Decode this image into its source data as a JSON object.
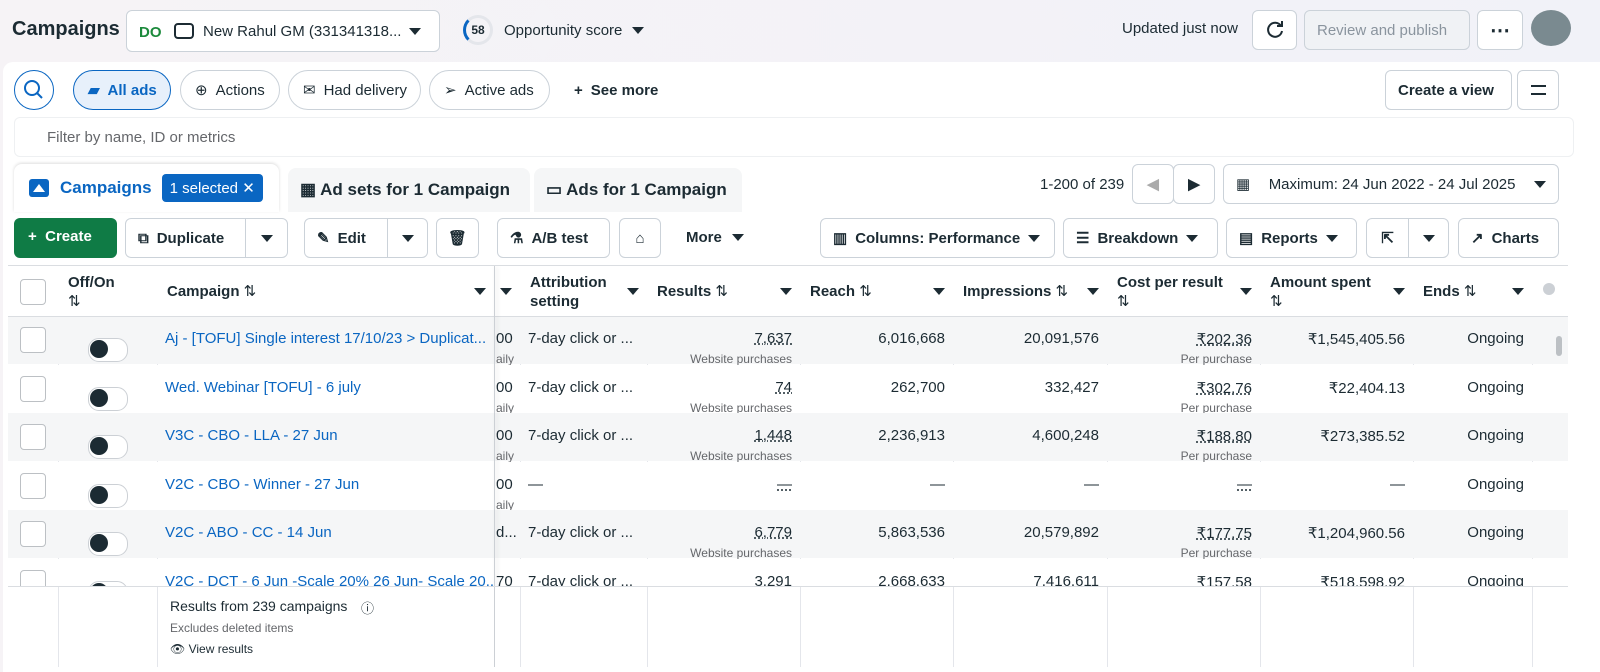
{
  "header": {
    "title": "Campaigns",
    "account": "New Rahul GM (331341318...",
    "opportunity_score": "58",
    "opportunity_label": "Opportunity score",
    "updated": "Updated just now",
    "review": "Review and publish"
  },
  "filters": {
    "items": [
      "All ads",
      "Actions",
      "Had delivery",
      "Active ads",
      "See more"
    ],
    "create_view": "Create a view",
    "search_placeholder": "Filter by name, ID or metrics"
  },
  "tabs": {
    "campaigns": "Campaigns",
    "selected": "1 selected",
    "ad_sets": "Ad sets for 1 Campaign",
    "ads": "Ads for 1 Campaign",
    "pagination": "1-200 of 239",
    "date_range": "Maximum: 24 Jun 2022 - 24 Jul 2025"
  },
  "toolbar": {
    "create": "Create",
    "duplicate": "Duplicate",
    "edit": "Edit",
    "ab_test": "A/B test",
    "more": "More",
    "columns": "Columns: Performance",
    "breakdown": "Breakdown",
    "reports": "Reports",
    "charts": "Charts"
  },
  "table": {
    "columns": [
      "Off/On",
      "Campaign",
      "Attribution setting",
      "Results",
      "Reach",
      "Impressions",
      "Cost per result",
      "Amount spent",
      "Ends"
    ],
    "rows": [
      {
        "campaign": "Aj - [TOFU] Single interest 17/10/23 > Duplicat...",
        "budget": "00",
        "budget_sub": "aily",
        "attribution": "7-day click or ...",
        "results": "7,637",
        "results_sub": "Website purchases",
        "reach": "6,016,668",
        "impressions": "20,091,576",
        "cost": "₹202.36",
        "cost_sub": "Per purchase",
        "amount": "₹1,545,405.56",
        "ends": "Ongoing"
      },
      {
        "campaign": "Wed. Webinar [TOFU] - 6 july",
        "budget": "00",
        "budget_sub": "aily",
        "attribution": "7-day click or ...",
        "results": "74",
        "results_sub": "Website purchases",
        "reach": "262,700",
        "impressions": "332,427",
        "cost": "₹302.76",
        "cost_sub": "Per purchase",
        "amount": "₹22,404.13",
        "ends": "Ongoing"
      },
      {
        "campaign": "V3C - CBO - LLA - 27 Jun",
        "budget": "00",
        "budget_sub": "aily",
        "attribution": "7-day click or ...",
        "results": "1,448",
        "results_sub": "Website purchases",
        "reach": "2,236,913",
        "impressions": "4,600,248",
        "cost": "₹188.80",
        "cost_sub": "Per purchase",
        "amount": "₹273,385.52",
        "ends": "Ongoing"
      },
      {
        "campaign": "V2C - CBO - Winner - 27 Jun",
        "budget": "00",
        "budget_sub": "aily",
        "attribution": "—",
        "results": "—",
        "reach": "—",
        "impressions": "—",
        "cost": "—",
        "amount": "—",
        "ends": "Ongoing"
      },
      {
        "campaign": "V2C - ABO - CC - 14 Jun",
        "budget": "d...",
        "attribution": "7-day click or ...",
        "results": "6,779",
        "results_sub": "Website purchases",
        "reach": "5,863,536",
        "impressions": "20,579,892",
        "cost": "₹177.75",
        "cost_sub": "Per purchase",
        "amount": "₹1,204,960.56",
        "ends": "Ongoing"
      },
      {
        "campaign": "V2C - DCT - 6 Jun -Scale 20% 26 Jun- Scale 20...",
        "budget": "70",
        "attribution": "7-day click or ...",
        "results": "3,291",
        "reach": "2,668,633",
        "impressions": "7,416,611",
        "cost": "₹157.58",
        "amount": "₹518,598.92",
        "ends": "Ongoing"
      }
    ]
  },
  "footer": {
    "results": "Results from 239 campaigns",
    "note": "Excludes deleted items",
    "view": "View results"
  }
}
